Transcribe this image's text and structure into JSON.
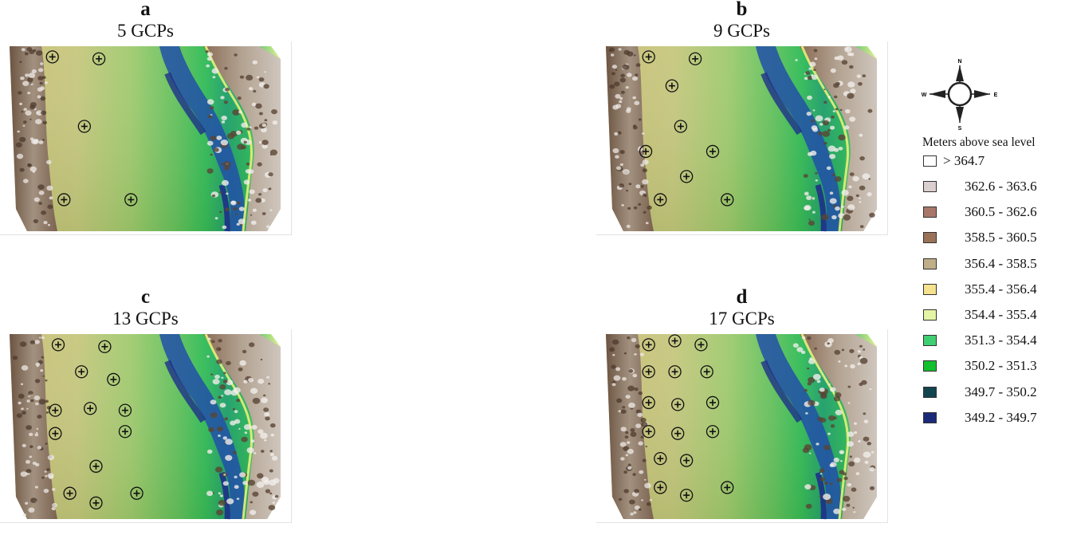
{
  "panels": [
    {
      "letter": "a",
      "title": "5 GCPs",
      "gcps": [
        [
          0.18,
          0.08
        ],
        [
          0.34,
          0.09
        ],
        [
          0.29,
          0.44
        ],
        [
          0.22,
          0.82
        ],
        [
          0.45,
          0.82
        ]
      ]
    },
    {
      "letter": "b",
      "title": "9 GCPs",
      "gcps": [
        [
          0.18,
          0.08
        ],
        [
          0.34,
          0.09
        ],
        [
          0.26,
          0.23
        ],
        [
          0.29,
          0.44
        ],
        [
          0.17,
          0.57
        ],
        [
          0.4,
          0.57
        ],
        [
          0.31,
          0.7
        ],
        [
          0.22,
          0.82
        ],
        [
          0.45,
          0.82
        ]
      ]
    },
    {
      "letter": "c",
      "title": "13 GCPs",
      "gcps": [
        [
          0.2,
          0.08
        ],
        [
          0.36,
          0.09
        ],
        [
          0.28,
          0.22
        ],
        [
          0.39,
          0.26
        ],
        [
          0.19,
          0.42
        ],
        [
          0.31,
          0.41
        ],
        [
          0.43,
          0.42
        ],
        [
          0.19,
          0.54
        ],
        [
          0.43,
          0.53
        ],
        [
          0.33,
          0.71
        ],
        [
          0.24,
          0.85
        ],
        [
          0.47,
          0.85
        ],
        [
          0.33,
          0.9
        ]
      ]
    },
    {
      "letter": "d",
      "title": "17 GCPs",
      "gcps": [
        [
          0.18,
          0.08
        ],
        [
          0.27,
          0.06
        ],
        [
          0.36,
          0.08
        ],
        [
          0.18,
          0.22
        ],
        [
          0.27,
          0.22
        ],
        [
          0.38,
          0.22
        ],
        [
          0.18,
          0.38
        ],
        [
          0.28,
          0.39
        ],
        [
          0.4,
          0.38
        ],
        [
          0.18,
          0.53
        ],
        [
          0.28,
          0.54
        ],
        [
          0.4,
          0.53
        ],
        [
          0.22,
          0.67
        ],
        [
          0.31,
          0.68
        ],
        [
          0.22,
          0.82
        ],
        [
          0.31,
          0.86
        ],
        [
          0.45,
          0.82
        ]
      ]
    }
  ],
  "compass": {
    "n": "N",
    "s": "S",
    "e": "E",
    "w": "W"
  },
  "legend": {
    "title": "Meters above sea level",
    "items": [
      {
        "label": "> 364.7",
        "color": "#ffffff"
      },
      {
        "label": "362.6 - 363.6",
        "color": "#dccfcf"
      },
      {
        "label": "360.5 - 362.6",
        "color": "#a8776a"
      },
      {
        "label": "358.5 - 360.5",
        "color": "#9a7258"
      },
      {
        "label": "356.4 - 358.5",
        "color": "#bfae88"
      },
      {
        "label": "355.4 - 356.4",
        "color": "#f5e28f"
      },
      {
        "label": "354.4 - 355.4",
        "color": "#e4f5a6"
      },
      {
        "label": "351.3 - 354.4",
        "color": "#3fcf72"
      },
      {
        "label": "350.2 - 351.3",
        "color": "#12c02e"
      },
      {
        "label": "349.7 - 350.2",
        "color": "#12454f"
      },
      {
        "label": "349.2 - 349.7",
        "color": "#1b2a78"
      }
    ]
  }
}
